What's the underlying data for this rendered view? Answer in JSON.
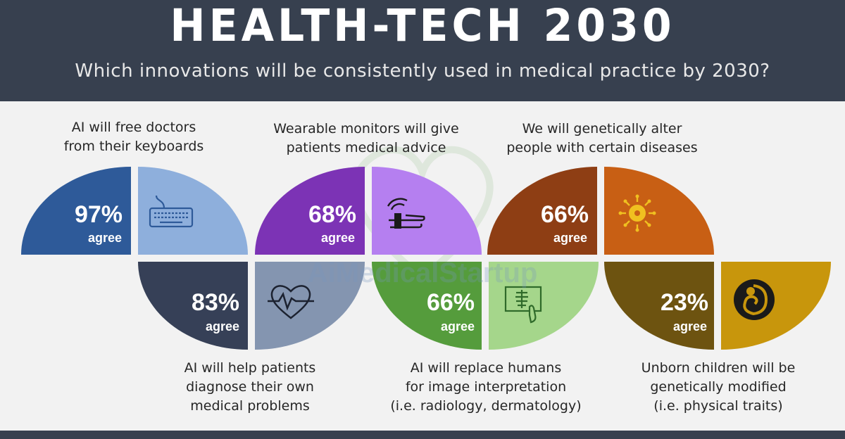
{
  "header": {
    "title": "HEALTH-TECH 2030",
    "subtitle": "Which innovations will be consistently used in medical practice by 2030?"
  },
  "watermark": "AiMedicalStartup",
  "agree_label": "agree",
  "colors": {
    "header_bg": "#37404f",
    "blue": "#2e5a99",
    "blue_light": "#8eafdc",
    "navy": "#364057",
    "slate": "#8495b0",
    "purple": "#7c33b5",
    "lavender": "#b57ff0",
    "green": "#559c3c",
    "green_light": "#a5d68b",
    "brown": "#8e3e14",
    "orange": "#c85f14",
    "olive": "#6d5310",
    "gold": "#c8960c"
  },
  "items": [
    {
      "statement": [
        "AI will free doctors",
        "from their keyboards"
      ],
      "percent": "97%",
      "icon": "keyboard-icon"
    },
    {
      "statement": [
        "AI will help patients",
        "diagnose their own",
        "medical problems"
      ],
      "percent": "83%",
      "icon": "heartbeat-icon"
    },
    {
      "statement": [
        "Wearable monitors will give",
        "patients medical advice"
      ],
      "percent": "68%",
      "icon": "wearable-hand-icon"
    },
    {
      "statement": [
        "AI will replace humans",
        "for image interpretation",
        "(i.e. radiology, dermatology)"
      ],
      "percent": "66%",
      "icon": "xray-screen-icon"
    },
    {
      "statement": [
        "We will genetically alter",
        "people with certain diseases"
      ],
      "percent": "66%",
      "icon": "virus-icon"
    },
    {
      "statement": [
        "Unborn children will be",
        "genetically modified",
        "(i.e. physical traits)"
      ],
      "percent": "23%",
      "icon": "embryo-icon"
    }
  ]
}
